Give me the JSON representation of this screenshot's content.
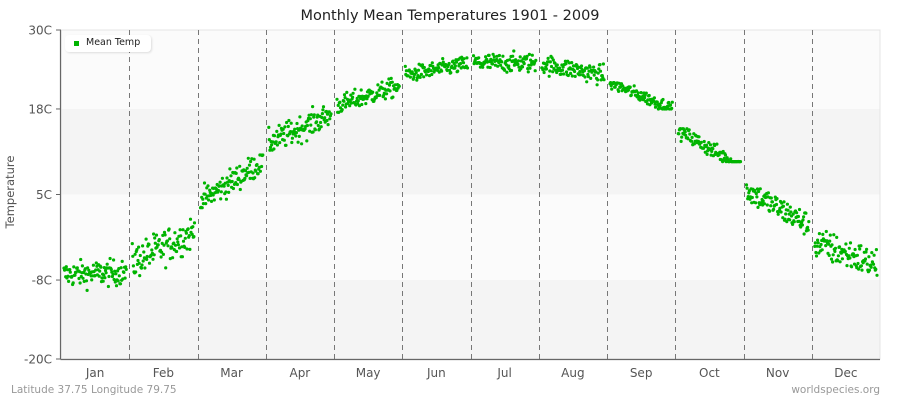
{
  "title": "Monthly Mean Temperatures 1901 - 2009",
  "footer": {
    "location": "Latitude 37.75 Longitude 79.75",
    "source": "worldspecies.org"
  },
  "colors": {
    "series": "#00b400",
    "band_light": "#fbfbfb",
    "band_dark": "#f4f4f4",
    "axis": "#666666",
    "divider": "#777777"
  },
  "chart_data": {
    "type": "scatter",
    "title": "Monthly Mean Temperatures 1901 - 2009",
    "xlabel": "",
    "ylabel": "Temperature",
    "ylim": [
      -20,
      30
    ],
    "yticks": [
      "30C",
      "18C",
      "5C",
      "-8C",
      "-20C"
    ],
    "ytick_values": [
      30,
      18,
      5,
      -8,
      -20
    ],
    "categories": [
      "Jan",
      "Feb",
      "Mar",
      "Apr",
      "May",
      "Jun",
      "Jul",
      "Aug",
      "Sep",
      "Oct",
      "Nov",
      "Dec"
    ],
    "legend": {
      "position": "top-left",
      "entries": [
        "Mean Temp"
      ]
    },
    "grid": "alternating horizontal bands, dashed vertical month dividers",
    "series": [
      {
        "name": "Mean Temp",
        "years": "1901-2009 (109 points per month)",
        "approx_mean": [
          -7,
          -3,
          7,
          15,
          20,
          24,
          25,
          24,
          20,
          12,
          3,
          -4
        ],
        "approx_min": [
          -11,
          -9,
          3,
          11,
          17,
          21,
          22,
          21,
          18,
          10,
          -1,
          -9
        ],
        "approx_max": [
          -3,
          2,
          11,
          19,
          23,
          26,
          28,
          27,
          22,
          15,
          7,
          1
        ]
      }
    ]
  }
}
